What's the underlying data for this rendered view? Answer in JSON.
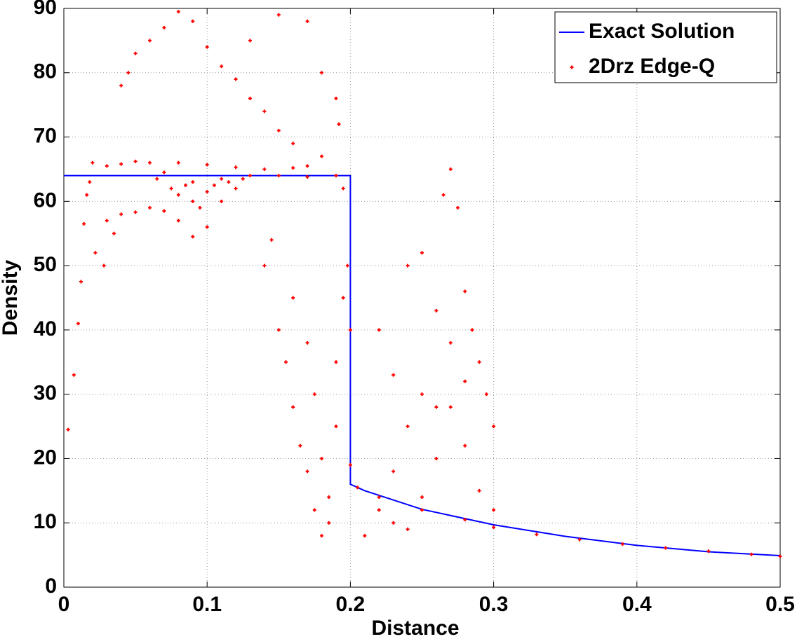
{
  "chart_data": {
    "type": "scatter",
    "x_label": "Distance",
    "y_label": "Density",
    "xlim": [
      0,
      0.5
    ],
    "ylim": [
      0,
      90
    ],
    "xticks": [
      0,
      0.1,
      0.2,
      0.3,
      0.4,
      0.5
    ],
    "yticks": [
      0,
      10,
      20,
      30,
      40,
      50,
      60,
      70,
      80,
      90
    ],
    "grid": true,
    "legend": "top-right",
    "series": [
      {
        "name": "Exact Solution",
        "mode": "line",
        "color": "#0000ff",
        "x": [
          0,
          0.2,
          0.2,
          0.21,
          0.25,
          0.3,
          0.35,
          0.4,
          0.45,
          0.5
        ],
        "values": [
          64,
          64,
          16,
          15,
          12.1,
          9.7,
          7.9,
          6.5,
          5.5,
          4.9
        ]
      },
      {
        "name": "2Drz Edge-Q",
        "mode": "markers",
        "color": "#ff0000",
        "x": [
          0.02,
          0.03,
          0.04,
          0.05,
          0.06,
          0.08,
          0.1,
          0.12,
          0.14,
          0.16,
          0.17,
          0.18,
          0.19,
          0.195,
          0.07,
          0.09,
          0.11,
          0.13,
          0.15,
          0.17,
          0.03,
          0.04,
          0.05,
          0.06,
          0.07,
          0.08,
          0.09,
          0.1,
          0.11,
          0.12,
          0.08,
          0.09,
          0.1,
          0.085,
          0.095,
          0.105,
          0.115,
          0.125,
          0.075,
          0.065,
          0.003,
          0.007,
          0.01,
          0.012,
          0.014,
          0.016,
          0.018,
          0.022,
          0.028,
          0.035,
          0.04,
          0.045,
          0.05,
          0.06,
          0.07,
          0.08,
          0.09,
          0.1,
          0.11,
          0.12,
          0.13,
          0.14,
          0.15,
          0.16,
          0.17,
          0.15,
          0.13,
          0.18,
          0.19,
          0.192,
          0.14,
          0.15,
          0.155,
          0.16,
          0.165,
          0.17,
          0.175,
          0.18,
          0.185,
          0.19,
          0.145,
          0.16,
          0.17,
          0.175,
          0.18,
          0.185,
          0.19,
          0.195,
          0.198,
          0.2,
          0.21,
          0.22,
          0.23,
          0.24,
          0.25,
          0.22,
          0.24,
          0.25,
          0.26,
          0.27,
          0.27,
          0.265,
          0.275,
          0.28,
          0.285,
          0.29,
          0.295,
          0.3,
          0.3,
          0.29,
          0.23,
          0.24,
          0.25,
          0.26,
          0.27,
          0.28,
          0.28,
          0.26,
          0.23,
          0.2,
          0.205,
          0.22,
          0.25,
          0.28,
          0.3,
          0.33,
          0.36,
          0.39,
          0.42,
          0.45,
          0.48,
          0.5
        ],
        "values": [
          66,
          65.5,
          65.8,
          66.2,
          66,
          66,
          65.7,
          65.3,
          65,
          65.2,
          65.5,
          67,
          64,
          62,
          64.5,
          63,
          63.5,
          64,
          64,
          63.8,
          57,
          58,
          58.3,
          59,
          58.5,
          57,
          54.5,
          56,
          60,
          62,
          61,
          60,
          61.5,
          62.5,
          59,
          62.5,
          63,
          63.5,
          62,
          63.5,
          24.5,
          33,
          41,
          47.5,
          56.5,
          61,
          63,
          52,
          50,
          55,
          78,
          80,
          83,
          85,
          87,
          89.5,
          88,
          84,
          81,
          79,
          76,
          74,
          71,
          69,
          88,
          89,
          85,
          80,
          76,
          72,
          50,
          40,
          35,
          28,
          22,
          18,
          12,
          8,
          14,
          25,
          54,
          45,
          38,
          30,
          20,
          10,
          35,
          45,
          50,
          40,
          8,
          12,
          18,
          25,
          30,
          40,
          50,
          52,
          43,
          38,
          65,
          61,
          59,
          46,
          40,
          35,
          30,
          25,
          12,
          15,
          10,
          9,
          14,
          20,
          28,
          32,
          22,
          28,
          33,
          19,
          15.5,
          14,
          12,
          10.5,
          9.3,
          8.2,
          7.4,
          6.7,
          6.1,
          5.6,
          5.1,
          4.8
        ]
      }
    ]
  }
}
